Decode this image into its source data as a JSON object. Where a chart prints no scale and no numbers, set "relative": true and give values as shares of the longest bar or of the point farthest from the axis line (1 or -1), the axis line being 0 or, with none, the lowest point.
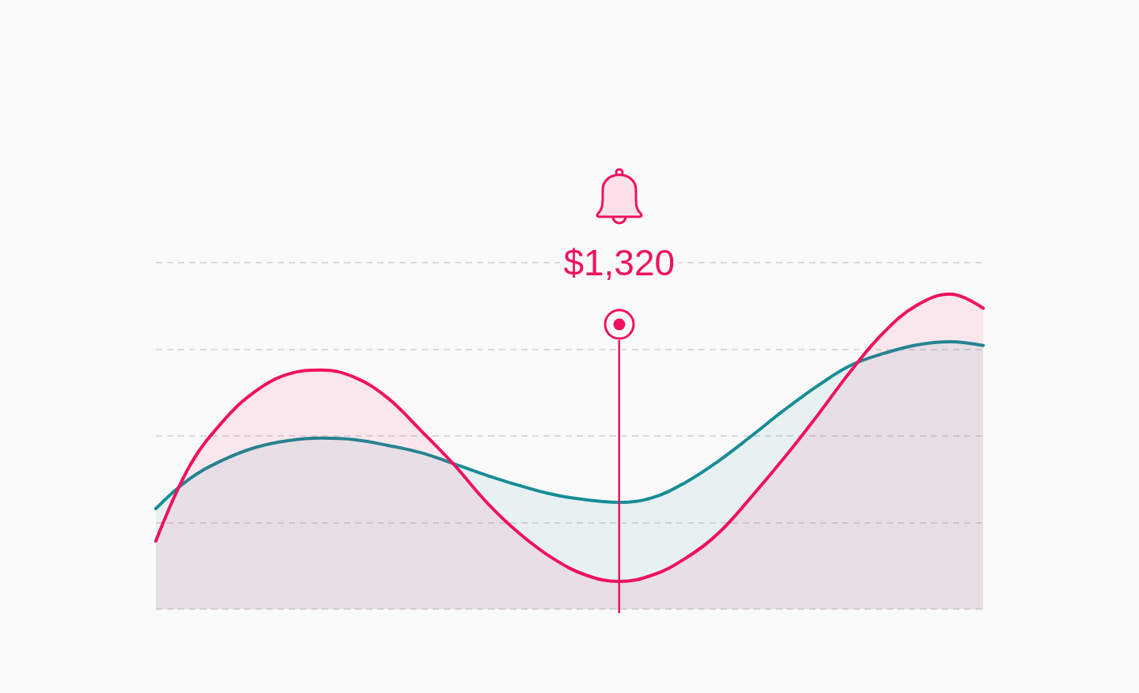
{
  "chart_data": {
    "type": "area",
    "categories": [
      null,
      null,
      null,
      null,
      null,
      null,
      null,
      null,
      null,
      null,
      null,
      null,
      null,
      null,
      null,
      null,
      null,
      null,
      null,
      null,
      null,
      null,
      null,
      null,
      null,
      null
    ],
    "relative": true,
    "series": [
      {
        "color": "#178d96",
        "values": [
          0.319,
          0.412,
          0.472,
          0.513,
          0.535,
          0.543,
          0.538,
          0.52,
          0.497,
          0.462,
          0.425,
          0.392,
          0.364,
          0.347,
          0.339,
          0.354,
          0.402,
          0.47,
          0.55,
          0.633,
          0.709,
          0.774,
          0.812,
          0.839,
          0.849,
          0.837
        ]
      },
      {
        "color": "#f0115f",
        "values": [
          0.216,
          0.45,
          0.593,
          0.691,
          0.746,
          0.759,
          0.736,
          0.671,
          0.568,
          0.46,
          0.339,
          0.239,
          0.161,
          0.108,
          0.088,
          0.108,
          0.161,
          0.241,
          0.357,
          0.482,
          0.616,
          0.756,
          0.879,
          0.965,
          1,
          0.955
        ]
      }
    ],
    "annotations": [
      "$1,320"
    ],
    "grid": "y",
    "marker": "none"
  }
}
